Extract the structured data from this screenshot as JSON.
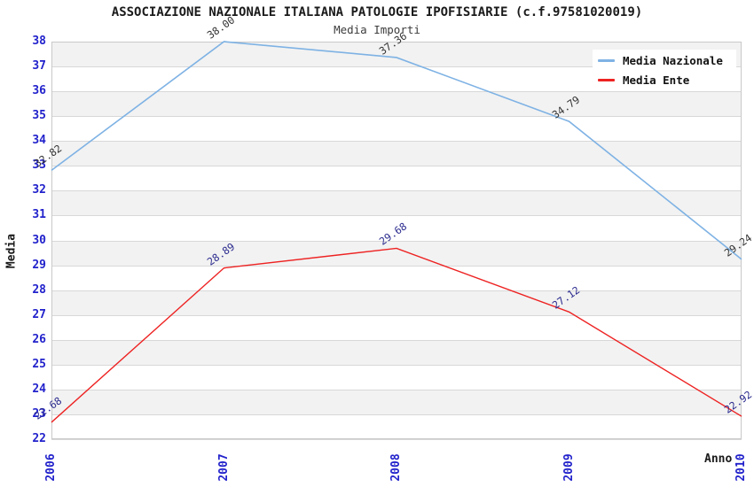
{
  "title": "ASSOCIAZIONE NAZIONALE ITALIANA PATOLOGIE IPOFISIARIE (c.f.97581020019)",
  "subtitle": "Media Importi",
  "legend": [
    {
      "label": "Media Nazionale",
      "color": "#7EB2E4"
    },
    {
      "label": "Media Ente",
      "color": "#EE2222"
    }
  ],
  "chart_data": {
    "type": "line",
    "x": [
      "2006",
      "2007",
      "2008",
      "2009",
      "2010"
    ],
    "series": [
      {
        "name": "Media Nazionale",
        "color": "#7EB2E4",
        "label_color": "#333333",
        "values": [
          32.82,
          38.0,
          37.36,
          34.79,
          29.24
        ],
        "labels": [
          "32.82",
          "38.00",
          "37.36",
          "34.79",
          "29.24"
        ]
      },
      {
        "name": "Media Ente",
        "color": "#EE2222",
        "label_color": "#2B2B8F",
        "values": [
          22.68,
          28.89,
          29.68,
          27.12,
          22.92
        ],
        "labels": [
          "22.68",
          "28.89",
          "29.68",
          "27.12",
          "22.92"
        ]
      }
    ],
    "xlabel": "Anno",
    "ylabel": "Media",
    "ylim": [
      22,
      38
    ],
    "ytick_step": 1,
    "yticks": [
      22,
      23,
      24,
      25,
      26,
      27,
      28,
      29,
      30,
      31,
      32,
      33,
      34,
      35,
      36,
      37,
      38
    ],
    "grid": true,
    "legend_position": "top-right",
    "band_colors": [
      "#F2F2F2",
      "#FFFFFF"
    ]
  },
  "colors": {
    "axis_tick": "#2222CC",
    "grid": "#D8D8D8",
    "plot_border": "#C9C9C9",
    "title": "#1A1A1A",
    "subtitle": "#3C3C3C",
    "background": "#FFFFFF"
  }
}
